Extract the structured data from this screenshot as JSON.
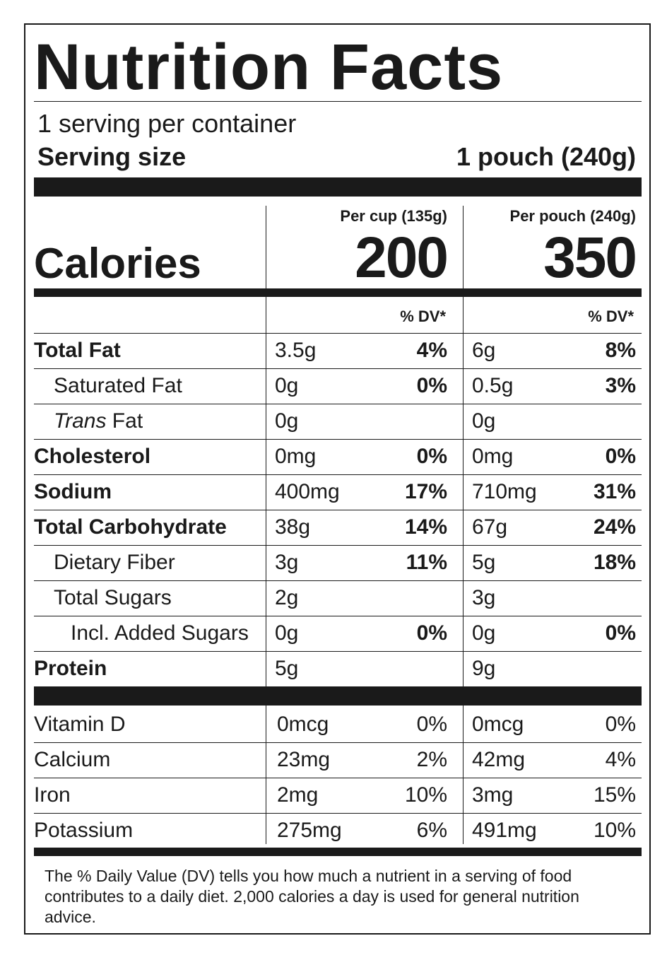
{
  "title": "Nutrition Facts",
  "servings_per_container": "1 serving per container",
  "serving_size_label": "Serving size",
  "serving_size_value": "1 pouch (240g)",
  "calories_label": "Calories",
  "columns": [
    {
      "header": "Per cup (135g)",
      "calories": "200",
      "dv_header": "% DV*"
    },
    {
      "header": "Per pouch (240g)",
      "calories": "350",
      "dv_header": "% DV*"
    }
  ],
  "nutrients": [
    {
      "name": "Total Fat",
      "bold": true,
      "indent": 0,
      "cup_amount": "3.5g",
      "cup_dv": "4%",
      "pouch_amount": "6g",
      "pouch_dv": "8%"
    },
    {
      "name": "Saturated Fat",
      "bold": false,
      "indent": 1,
      "cup_amount": "0g",
      "cup_dv": "0%",
      "pouch_amount": "0.5g",
      "pouch_dv": "3%"
    },
    {
      "name_italic": "Trans",
      "name": " Fat",
      "bold": false,
      "indent": 1,
      "cup_amount": "0g",
      "cup_dv": "",
      "pouch_amount": "0g",
      "pouch_dv": ""
    },
    {
      "name": "Cholesterol",
      "bold": true,
      "indent": 0,
      "cup_amount": "0mg",
      "cup_dv": "0%",
      "pouch_amount": "0mg",
      "pouch_dv": "0%"
    },
    {
      "name": "Sodium",
      "bold": true,
      "indent": 0,
      "cup_amount": "400mg",
      "cup_dv": "17%",
      "pouch_amount": "710mg",
      "pouch_dv": "31%"
    },
    {
      "name": "Total Carbohydrate",
      "bold": true,
      "indent": 0,
      "cup_amount": "38g",
      "cup_dv": "14%",
      "pouch_amount": "67g",
      "pouch_dv": "24%"
    },
    {
      "name": "Dietary Fiber",
      "bold": false,
      "indent": 1,
      "cup_amount": "3g",
      "cup_dv": "11%",
      "pouch_amount": "5g",
      "pouch_dv": "18%"
    },
    {
      "name": "Total Sugars",
      "bold": false,
      "indent": 1,
      "cup_amount": "2g",
      "cup_dv": "",
      "pouch_amount": "3g",
      "pouch_dv": ""
    },
    {
      "name": "Incl. Added Sugars",
      "bold": false,
      "indent": 2,
      "cup_amount": "0g",
      "cup_dv": "0%",
      "pouch_amount": "0g",
      "pouch_dv": "0%"
    },
    {
      "name": "Protein",
      "bold": true,
      "indent": 0,
      "cup_amount": "5g",
      "cup_dv": "",
      "pouch_amount": "9g",
      "pouch_dv": ""
    }
  ],
  "vitamins": [
    {
      "name": "Vitamin D",
      "cup_amount": "0mcg",
      "cup_dv": "0%",
      "pouch_amount": "0mcg",
      "pouch_dv": "0%"
    },
    {
      "name": "Calcium",
      "cup_amount": "23mg",
      "cup_dv": "2%",
      "pouch_amount": "42mg",
      "pouch_dv": "4%"
    },
    {
      "name": "Iron",
      "cup_amount": "2mg",
      "cup_dv": "10%",
      "pouch_amount": "3mg",
      "pouch_dv": "15%"
    },
    {
      "name": "Potassium",
      "cup_amount": "275mg",
      "cup_dv": "6%",
      "pouch_amount": "491mg",
      "pouch_dv": "10%"
    }
  ],
  "footnote": "The % Daily Value (DV) tells you how much a nutrient in a serving of food contributes to a daily diet. 2,000 calories a day is used for general nutrition advice."
}
